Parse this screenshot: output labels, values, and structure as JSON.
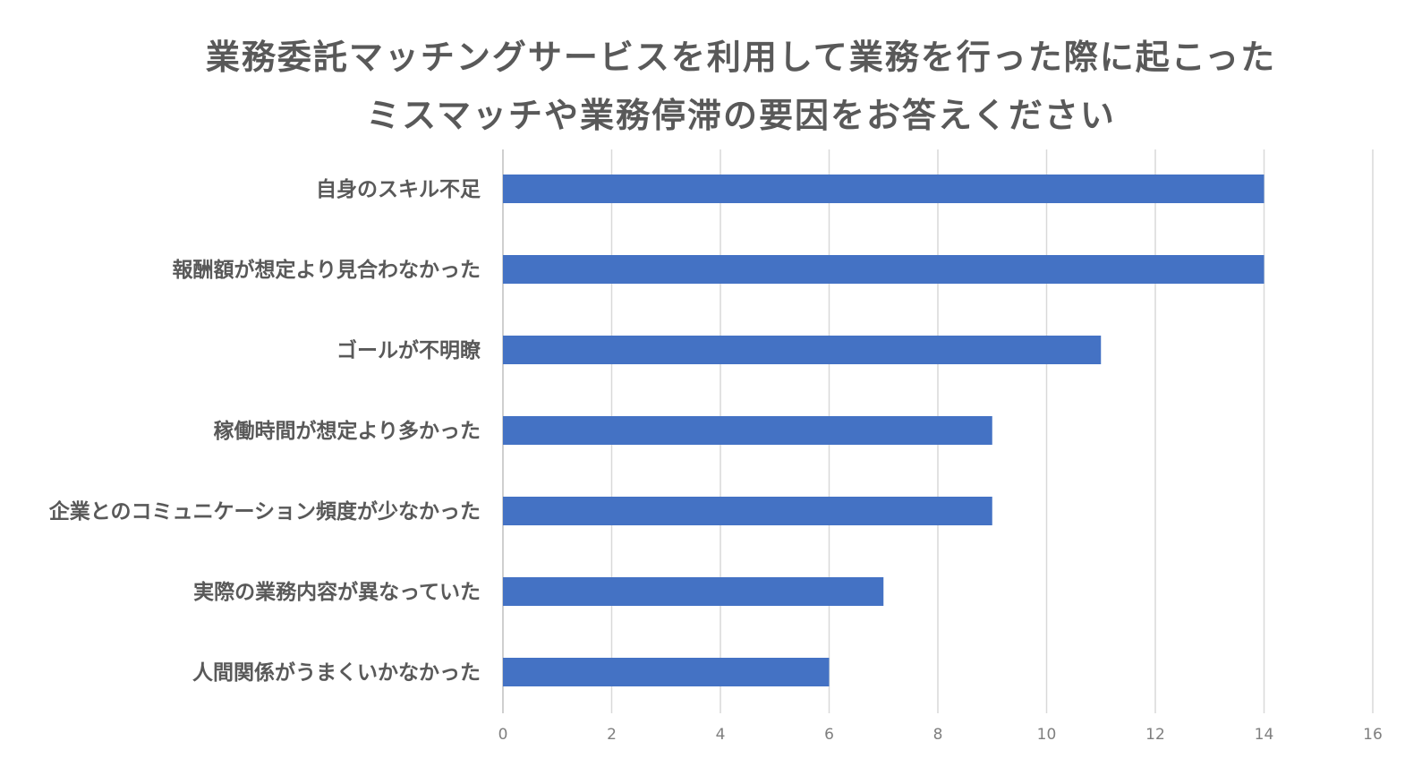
{
  "chart_data": {
    "type": "bar",
    "orientation": "horizontal",
    "title": [
      "業務委託マッチングサービスを利用して業務を行った際に起こった",
      "ミスマッチや業務停滞の要因をお答えください"
    ],
    "categories": [
      "自身のスキル不足",
      "報酬額が想定より見合わなかった",
      "ゴールが不明瞭",
      "稼働時間が想定より多かった",
      "企業とのコミュニケーション頻度が少なかった",
      "実際の業務内容が異なっていた",
      "人間関係がうまくいかなかった"
    ],
    "values": [
      14,
      14,
      11,
      9,
      9,
      7,
      6
    ],
    "xlim": [
      0,
      16
    ],
    "xticks": [
      0,
      2,
      4,
      6,
      8,
      10,
      12,
      14,
      16
    ],
    "grid": true,
    "legend": "none",
    "bar_color": "#4472C4",
    "grid_color": "#D9D9D9"
  }
}
